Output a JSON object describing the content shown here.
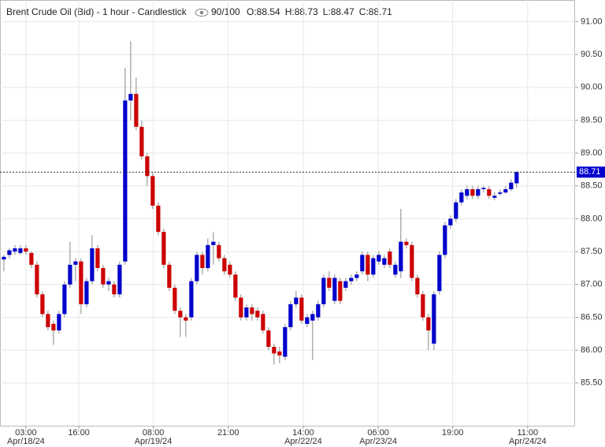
{
  "chart_data": {
    "type": "candlestick",
    "title": "Brent Crude Oil (Bid) - 1 hour - Candlestick",
    "zoom": "90/100",
    "ohlc_text": [
      "O:88.54",
      "H:88.73",
      "L:88.47",
      "C:88.71"
    ],
    "up_color": "#0000cc",
    "down_color": "#cc0000",
    "grid": true,
    "last_price": 88.71,
    "xlim": [
      -0.7,
      103.6
    ],
    "xticks": [
      {
        "value": 4,
        "label": "03:00",
        "date": "Apr/18/24"
      },
      {
        "value": 13.6,
        "label": "16:00"
      },
      {
        "value": 27.1,
        "label": "08:00",
        "date": "Apr/19/24"
      },
      {
        "value": 40.7,
        "label": "21:00"
      },
      {
        "value": 54.3,
        "label": "14:00",
        "date": "Apr/22/24"
      },
      {
        "value": 67.9,
        "label": "06:00",
        "date": "Apr/23/24"
      },
      {
        "value": 81.4,
        "label": "19:00"
      },
      {
        "value": 95,
        "label": "11:00",
        "date": "Apr/24/24"
      }
    ],
    "ylim": [
      84.85,
      91.33
    ],
    "yticks": [
      {
        "value": 85.5,
        "label": "85.50"
      },
      {
        "value": 86,
        "label": "86.00"
      },
      {
        "value": 86.5,
        "label": "86.50"
      },
      {
        "value": 87,
        "label": "87.00"
      },
      {
        "value": 87.5,
        "label": "87.50"
      },
      {
        "value": 88,
        "label": "88.00"
      },
      {
        "value": 88.5,
        "label": "88.50"
      },
      {
        "value": 89,
        "label": "89.00"
      },
      {
        "value": 89.5,
        "label": "89.50"
      },
      {
        "value": 90,
        "label": "90.00"
      },
      {
        "value": 90.5,
        "label": "90.50"
      },
      {
        "value": 91,
        "label": "91.00"
      }
    ],
    "open": [
      87.38,
      87.45,
      87.5,
      87.48,
      87.55,
      87.48,
      87.3,
      86.85,
      86.55,
      86.4,
      86.3,
      86.55,
      87.0,
      87.3,
      87.35,
      86.7,
      87.05,
      87.55,
      87.25,
      87.0,
      87.0,
      86.85,
      87.35,
      89.8,
      89.9,
      89.4,
      88.95,
      88.65,
      88.2,
      87.8,
      87.3,
      86.95,
      86.6,
      86.5,
      86.5,
      87.05,
      87.45,
      87.25,
      87.6,
      87.6,
      87.4,
      87.3,
      87.15,
      86.8,
      86.5,
      86.65,
      86.6,
      86.55,
      86.3,
      86.05,
      85.98,
      85.9,
      86.35,
      86.7,
      86.8,
      86.4,
      86.45,
      86.5,
      86.7,
      87.1,
      86.75,
      87.05,
      86.95,
      87.05,
      87.1,
      87.2,
      87.45,
      87.15,
      87.35,
      87.3,
      87.5,
      87.15,
      87.2,
      87.65,
      87.6,
      87.1,
      86.85,
      86.5,
      86.1,
      86.9,
      87.45,
      87.9,
      88.0,
      88.25,
      88.35,
      88.45,
      88.35,
      88.45,
      88.45,
      88.32,
      88.38,
      88.4,
      88.45,
      88.54
    ],
    "high": [
      87.45,
      87.55,
      87.6,
      87.6,
      87.6,
      87.5,
      87.35,
      86.9,
      86.6,
      86.45,
      86.6,
      87.05,
      87.65,
      87.4,
      87.4,
      87.1,
      87.75,
      87.6,
      87.3,
      87.1,
      87.05,
      87.35,
      90.3,
      90.7,
      90.15,
      89.5,
      89.0,
      88.7,
      88.25,
      87.85,
      87.35,
      87.0,
      86.65,
      86.55,
      87.1,
      87.5,
      87.5,
      87.7,
      87.8,
      87.65,
      87.45,
      87.35,
      87.2,
      86.85,
      86.7,
      86.7,
      86.65,
      86.6,
      86.35,
      86.1,
      86.05,
      86.4,
      86.75,
      86.9,
      86.85,
      86.55,
      86.6,
      86.75,
      87.15,
      87.2,
      87.15,
      87.1,
      87.1,
      87.15,
      87.2,
      87.5,
      87.5,
      87.45,
      87.5,
      87.45,
      87.55,
      87.35,
      88.15,
      87.7,
      87.65,
      87.15,
      86.9,
      86.55,
      86.9,
      87.5,
      87.95,
      88.05,
      88.3,
      88.45,
      88.5,
      88.5,
      88.5,
      88.5,
      88.5,
      88.4,
      88.45,
      88.5,
      88.6,
      88.73
    ],
    "low": [
      87.2,
      87.4,
      87.45,
      87.45,
      87.45,
      87.25,
      86.8,
      86.5,
      86.3,
      86.08,
      86.25,
      86.5,
      86.95,
      87.05,
      86.55,
      86.65,
      87.0,
      87.2,
      86.95,
      86.9,
      86.8,
      86.8,
      87.3,
      89.5,
      89.35,
      88.9,
      88.5,
      88.15,
      87.75,
      87.25,
      86.9,
      86.55,
      86.2,
      86.2,
      86.45,
      87.0,
      87.15,
      87.2,
      87.3,
      87.35,
      87.15,
      87.1,
      86.75,
      86.45,
      86.45,
      86.45,
      86.45,
      86.25,
      86.0,
      85.78,
      85.8,
      85.85,
      86.3,
      86.65,
      86.4,
      86.35,
      85.85,
      86.45,
      86.65,
      86.9,
      86.7,
      86.7,
      86.9,
      87.0,
      87.05,
      87.15,
      87.05,
      87.1,
      87.3,
      87.25,
      87.25,
      87.1,
      87.1,
      87.55,
      87.05,
      86.8,
      86.45,
      86.0,
      86.0,
      86.85,
      87.4,
      87.85,
      87.95,
      88.2,
      88.3,
      88.3,
      88.3,
      88.4,
      88.3,
      88.28,
      88.35,
      88.38,
      88.42,
      88.47
    ],
    "close": [
      87.42,
      87.52,
      87.55,
      87.55,
      87.5,
      87.3,
      86.85,
      86.55,
      86.35,
      86.3,
      86.55,
      87.0,
      87.3,
      87.35,
      86.7,
      87.05,
      87.55,
      87.25,
      87.0,
      87.05,
      86.85,
      87.3,
      89.8,
      89.9,
      89.4,
      88.95,
      88.65,
      88.2,
      87.8,
      87.3,
      86.95,
      86.6,
      86.5,
      86.45,
      87.05,
      87.45,
      87.25,
      87.6,
      87.65,
      87.4,
      87.2,
      87.15,
      86.8,
      86.5,
      86.65,
      86.55,
      86.5,
      86.3,
      86.05,
      85.95,
      85.92,
      86.35,
      86.7,
      86.8,
      86.45,
      86.5,
      86.55,
      86.7,
      87.1,
      86.95,
      87.1,
      86.75,
      87.05,
      87.1,
      87.15,
      87.45,
      87.15,
      87.4,
      87.45,
      87.4,
      87.3,
      87.3,
      87.65,
      87.6,
      87.1,
      86.85,
      86.5,
      86.3,
      86.85,
      87.45,
      87.9,
      88.0,
      88.25,
      88.4,
      88.45,
      88.35,
      88.45,
      88.47,
      88.35,
      88.35,
      88.4,
      88.45,
      88.55,
      88.71
    ]
  }
}
